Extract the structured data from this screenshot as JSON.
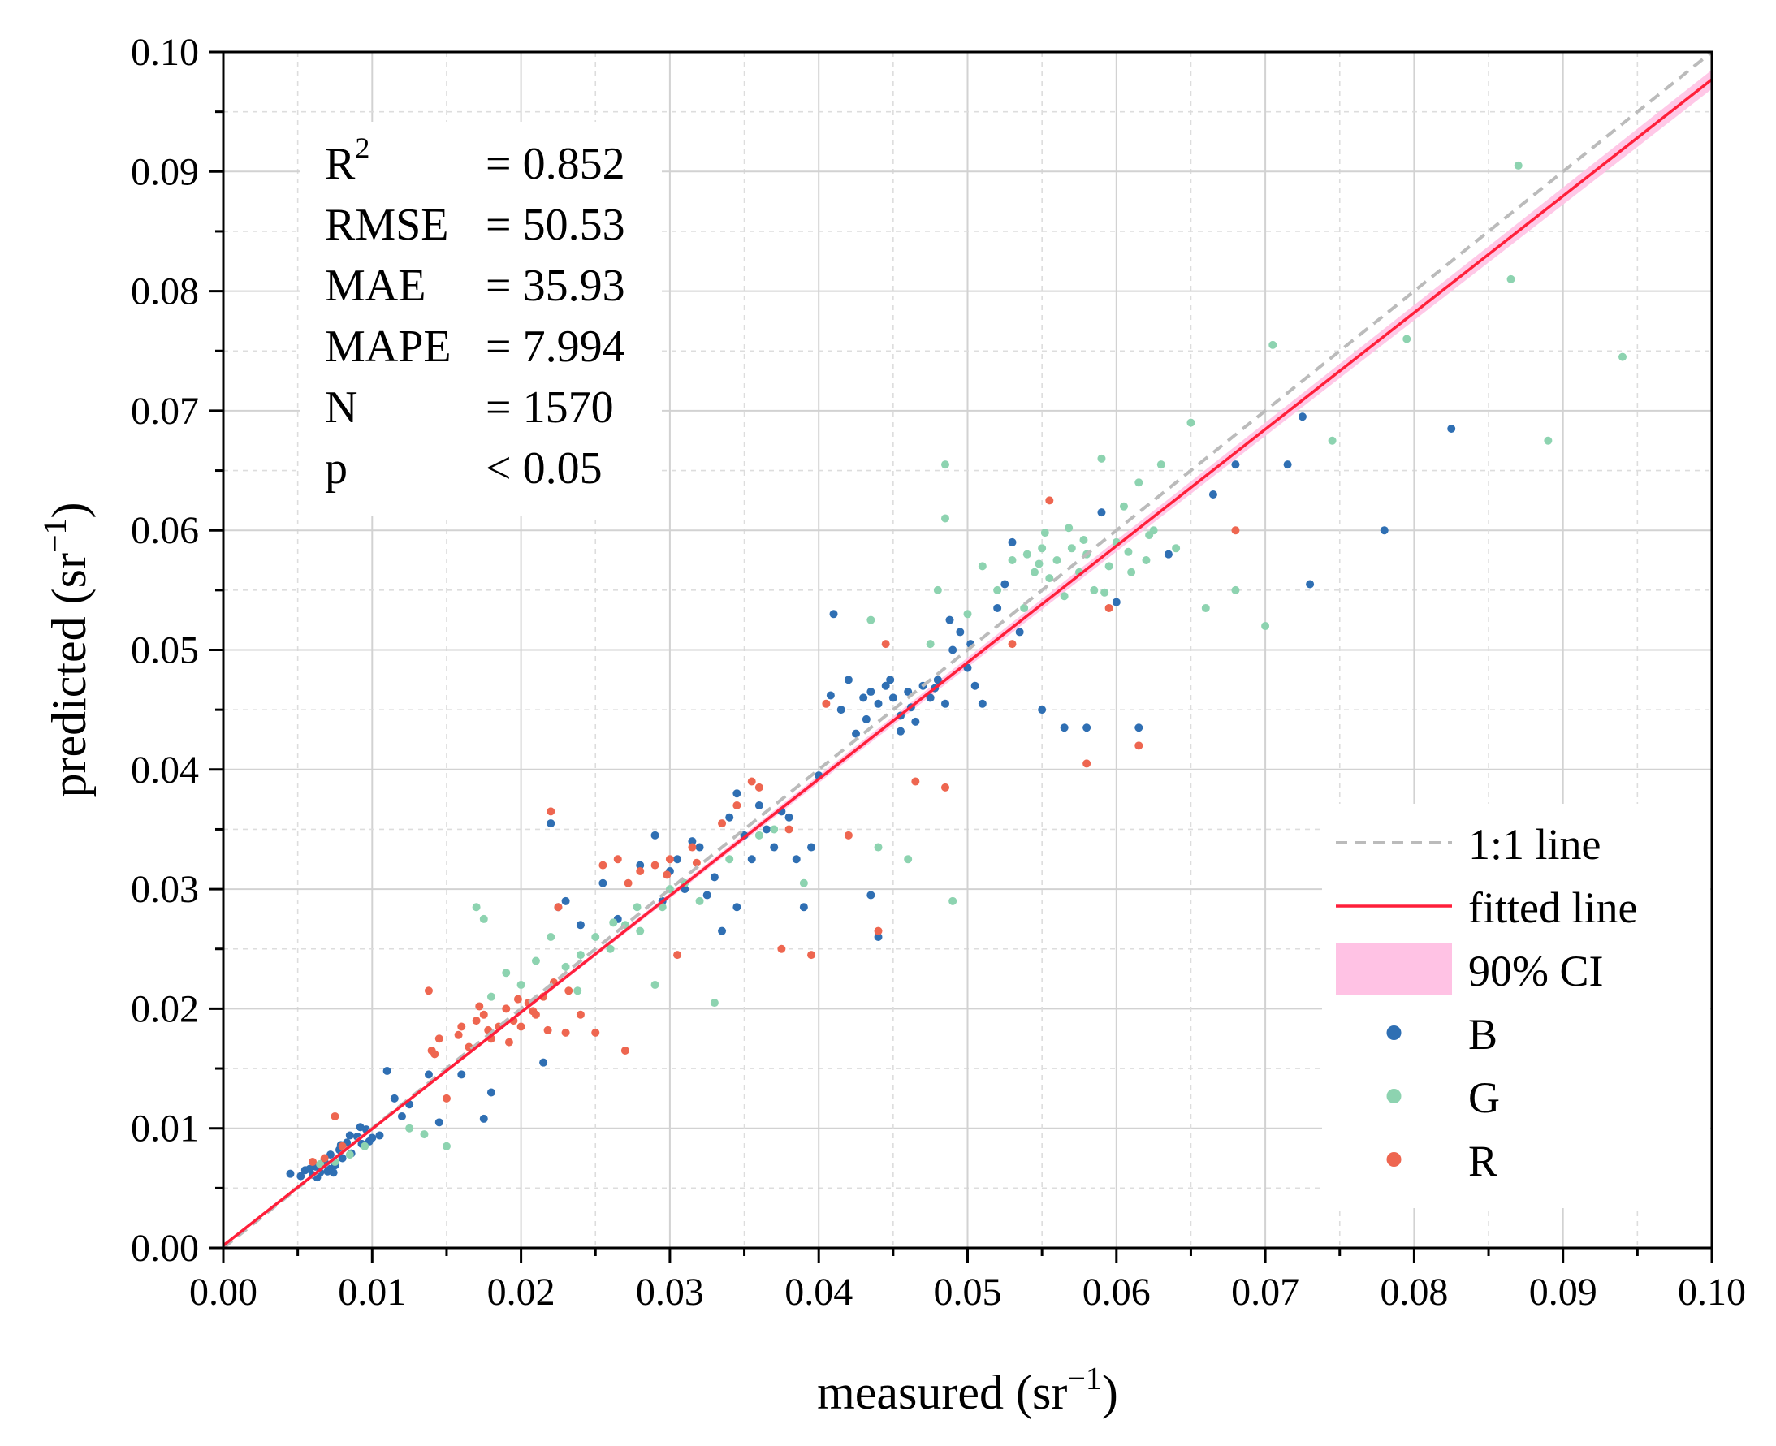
{
  "chart_data": {
    "type": "scatter",
    "xlabel": "measured (sr",
    "xlabel_sup": "−1",
    "xlabel_end": ")",
    "ylabel": "predicted (sr",
    "ylabel_sup": "−1",
    "ylabel_end": ")",
    "xlim": [
      0,
      0.1
    ],
    "ylim": [
      0,
      0.1
    ],
    "xticks": [
      "0.00",
      "0.01",
      "0.02",
      "0.03",
      "0.04",
      "0.05",
      "0.06",
      "0.07",
      "0.08",
      "0.09",
      "0.10"
    ],
    "yticks": [
      "0.00",
      "0.01",
      "0.02",
      "0.03",
      "0.04",
      "0.05",
      "0.06",
      "0.07",
      "0.08",
      "0.09",
      "0.10"
    ],
    "grid": true,
    "stats": [
      {
        "label": "R",
        "sup": "2",
        "value": "= 0.852"
      },
      {
        "label": "RMSE",
        "sup": "",
        "value": "= 50.53"
      },
      {
        "label": "MAE",
        "sup": "",
        "value": "= 35.93"
      },
      {
        "label": "MAPE",
        "sup": "",
        "value": "= 7.994"
      },
      {
        "label": "N",
        "sup": "",
        "value": "= 1570"
      },
      {
        "label": "p",
        "sup": "",
        "value": "< 0.05"
      }
    ],
    "one_to_one": {
      "name": "1:1 line",
      "color": "#bbbbbb",
      "points": [
        [
          0,
          0
        ],
        [
          0.1,
          0.1
        ]
      ]
    },
    "fit": {
      "name": "fitted line",
      "color": "#ff1f3a",
      "slope": 0.975,
      "intercept": 0.0002
    },
    "ci": {
      "name": "90% CI",
      "color": "#ffc2e4",
      "halfwidth_at_max": 0.0008
    },
    "series": [
      {
        "name": "B",
        "color": "#2f6fb3",
        "points": [
          [
            0.0045,
            0.0062
          ],
          [
            0.0052,
            0.006
          ],
          [
            0.0055,
            0.0065
          ],
          [
            0.006,
            0.0061
          ],
          [
            0.0062,
            0.0068
          ],
          [
            0.0065,
            0.0063
          ],
          [
            0.0068,
            0.0072
          ],
          [
            0.007,
            0.0064
          ],
          [
            0.0072,
            0.0078
          ],
          [
            0.0075,
            0.0069
          ],
          [
            0.0078,
            0.0082
          ],
          [
            0.008,
            0.0075
          ],
          [
            0.0083,
            0.0088
          ],
          [
            0.0086,
            0.0079
          ],
          [
            0.009,
            0.0093
          ],
          [
            0.0093,
            0.0087
          ],
          [
            0.0096,
            0.0099
          ],
          [
            0.01,
            0.0092
          ],
          [
            0.0058,
            0.0066
          ],
          [
            0.0063,
            0.0059
          ],
          [
            0.0067,
            0.0071
          ],
          [
            0.0071,
            0.0066
          ],
          [
            0.0074,
            0.0063
          ],
          [
            0.0079,
            0.0086
          ],
          [
            0.0085,
            0.0094
          ],
          [
            0.0092,
            0.0101
          ],
          [
            0.0098,
            0.0089
          ],
          [
            0.0105,
            0.0094
          ],
          [
            0.011,
            0.0148
          ],
          [
            0.0115,
            0.0125
          ],
          [
            0.012,
            0.011
          ],
          [
            0.0125,
            0.012
          ],
          [
            0.0138,
            0.0145
          ],
          [
            0.0145,
            0.0105
          ],
          [
            0.016,
            0.0145
          ],
          [
            0.0175,
            0.0108
          ],
          [
            0.018,
            0.013
          ],
          [
            0.0215,
            0.0155
          ],
          [
            0.022,
            0.0355
          ],
          [
            0.0225,
            0.0285
          ],
          [
            0.023,
            0.029
          ],
          [
            0.024,
            0.027
          ],
          [
            0.0255,
            0.0305
          ],
          [
            0.0265,
            0.0275
          ],
          [
            0.028,
            0.032
          ],
          [
            0.029,
            0.0345
          ],
          [
            0.0295,
            0.029
          ],
          [
            0.03,
            0.0315
          ],
          [
            0.0305,
            0.0325
          ],
          [
            0.031,
            0.03
          ],
          [
            0.0315,
            0.034
          ],
          [
            0.032,
            0.0335
          ],
          [
            0.0325,
            0.0295
          ],
          [
            0.033,
            0.031
          ],
          [
            0.034,
            0.036
          ],
          [
            0.0345,
            0.038
          ],
          [
            0.035,
            0.0345
          ],
          [
            0.0355,
            0.0325
          ],
          [
            0.036,
            0.037
          ],
          [
            0.0365,
            0.035
          ],
          [
            0.037,
            0.0335
          ],
          [
            0.0375,
            0.0365
          ],
          [
            0.038,
            0.036
          ],
          [
            0.0385,
            0.0325
          ],
          [
            0.039,
            0.0285
          ],
          [
            0.0395,
            0.0335
          ],
          [
            0.04,
            0.0395
          ],
          [
            0.041,
            0.053
          ],
          [
            0.0415,
            0.045
          ],
          [
            0.042,
            0.0475
          ],
          [
            0.0425,
            0.043
          ],
          [
            0.043,
            0.046
          ],
          [
            0.0435,
            0.0465
          ],
          [
            0.044,
            0.0455
          ],
          [
            0.0445,
            0.047
          ],
          [
            0.045,
            0.046
          ],
          [
            0.0455,
            0.0445
          ],
          [
            0.046,
            0.0465
          ],
          [
            0.0465,
            0.044
          ],
          [
            0.047,
            0.047
          ],
          [
            0.0475,
            0.046
          ],
          [
            0.048,
            0.0475
          ],
          [
            0.0485,
            0.0455
          ],
          [
            0.049,
            0.05
          ],
          [
            0.0495,
            0.0515
          ],
          [
            0.05,
            0.0485
          ],
          [
            0.0505,
            0.047
          ],
          [
            0.051,
            0.0455
          ],
          [
            0.052,
            0.0535
          ],
          [
            0.0525,
            0.0555
          ],
          [
            0.053,
            0.059
          ],
          [
            0.0535,
            0.0515
          ],
          [
            0.055,
            0.045
          ],
          [
            0.0565,
            0.0435
          ],
          [
            0.058,
            0.0435
          ],
          [
            0.059,
            0.0615
          ],
          [
            0.06,
            0.054
          ],
          [
            0.0615,
            0.0435
          ],
          [
            0.0635,
            0.058
          ],
          [
            0.0665,
            0.063
          ],
          [
            0.068,
            0.0655
          ],
          [
            0.0715,
            0.0655
          ],
          [
            0.0725,
            0.0695
          ],
          [
            0.073,
            0.0555
          ],
          [
            0.078,
            0.06
          ],
          [
            0.0825,
            0.0685
          ],
          [
            0.0435,
            0.0295
          ],
          [
            0.044,
            0.026
          ],
          [
            0.0345,
            0.0285
          ],
          [
            0.0335,
            0.0265
          ],
          [
            0.0408,
            0.0462
          ],
          [
            0.0448,
            0.0475
          ],
          [
            0.0462,
            0.0452
          ],
          [
            0.0478,
            0.0468
          ],
          [
            0.0432,
            0.0442
          ],
          [
            0.0455,
            0.0432
          ],
          [
            0.0502,
            0.0505
          ],
          [
            0.0488,
            0.0525
          ]
        ]
      },
      {
        "name": "G",
        "color": "#8dd3b0",
        "points": [
          [
            0.0065,
            0.007
          ],
          [
            0.0075,
            0.0072
          ],
          [
            0.0085,
            0.0078
          ],
          [
            0.0095,
            0.0085
          ],
          [
            0.0125,
            0.01
          ],
          [
            0.0135,
            0.0095
          ],
          [
            0.015,
            0.0085
          ],
          [
            0.017,
            0.0285
          ],
          [
            0.0175,
            0.0275
          ],
          [
            0.018,
            0.021
          ],
          [
            0.019,
            0.023
          ],
          [
            0.02,
            0.022
          ],
          [
            0.021,
            0.024
          ],
          [
            0.022,
            0.026
          ],
          [
            0.023,
            0.0235
          ],
          [
            0.024,
            0.0245
          ],
          [
            0.025,
            0.026
          ],
          [
            0.026,
            0.025
          ],
          [
            0.027,
            0.027
          ],
          [
            0.028,
            0.0265
          ],
          [
            0.029,
            0.022
          ],
          [
            0.0295,
            0.0285
          ],
          [
            0.03,
            0.03
          ],
          [
            0.031,
            0.0305
          ],
          [
            0.032,
            0.029
          ],
          [
            0.033,
            0.0205
          ],
          [
            0.034,
            0.0325
          ],
          [
            0.036,
            0.0345
          ],
          [
            0.037,
            0.035
          ],
          [
            0.039,
            0.0305
          ],
          [
            0.044,
            0.0335
          ],
          [
            0.0435,
            0.0525
          ],
          [
            0.046,
            0.0325
          ],
          [
            0.0475,
            0.0505
          ],
          [
            0.048,
            0.055
          ],
          [
            0.0485,
            0.061
          ],
          [
            0.0485,
            0.0655
          ],
          [
            0.049,
            0.029
          ],
          [
            0.05,
            0.053
          ],
          [
            0.051,
            0.057
          ],
          [
            0.052,
            0.055
          ],
          [
            0.053,
            0.0575
          ],
          [
            0.054,
            0.058
          ],
          [
            0.0545,
            0.0565
          ],
          [
            0.055,
            0.0585
          ],
          [
            0.0555,
            0.056
          ],
          [
            0.056,
            0.0575
          ],
          [
            0.0565,
            0.0545
          ],
          [
            0.057,
            0.0585
          ],
          [
            0.0575,
            0.0565
          ],
          [
            0.058,
            0.058
          ],
          [
            0.0585,
            0.055
          ],
          [
            0.059,
            0.066
          ],
          [
            0.0595,
            0.057
          ],
          [
            0.06,
            0.059
          ],
          [
            0.0605,
            0.062
          ],
          [
            0.061,
            0.0565
          ],
          [
            0.0615,
            0.064
          ],
          [
            0.062,
            0.0575
          ],
          [
            0.0625,
            0.06
          ],
          [
            0.063,
            0.0655
          ],
          [
            0.064,
            0.0585
          ],
          [
            0.065,
            0.069
          ],
          [
            0.066,
            0.0535
          ],
          [
            0.068,
            0.055
          ],
          [
            0.07,
            0.052
          ],
          [
            0.0705,
            0.0755
          ],
          [
            0.0745,
            0.0675
          ],
          [
            0.0795,
            0.076
          ],
          [
            0.0865,
            0.081
          ],
          [
            0.087,
            0.0905
          ],
          [
            0.089,
            0.0675
          ],
          [
            0.094,
            0.0745
          ],
          [
            0.0538,
            0.0535
          ],
          [
            0.0552,
            0.0598
          ],
          [
            0.0568,
            0.0602
          ],
          [
            0.0592,
            0.0548
          ],
          [
            0.0608,
            0.0582
          ],
          [
            0.0622,
            0.0596
          ],
          [
            0.0578,
            0.0592
          ],
          [
            0.0548,
            0.0572
          ],
          [
            0.0238,
            0.0215
          ],
          [
            0.0262,
            0.0272
          ],
          [
            0.0278,
            0.0285
          ]
        ]
      },
      {
        "name": "R",
        "color": "#ee6650",
        "points": [
          [
            0.006,
            0.0072
          ],
          [
            0.0068,
            0.0075
          ],
          [
            0.0075,
            0.011
          ],
          [
            0.008,
            0.0085
          ],
          [
            0.0138,
            0.0215
          ],
          [
            0.014,
            0.0165
          ],
          [
            0.0145,
            0.0175
          ],
          [
            0.015,
            0.0125
          ],
          [
            0.016,
            0.0185
          ],
          [
            0.017,
            0.019
          ],
          [
            0.0175,
            0.0195
          ],
          [
            0.018,
            0.0175
          ],
          [
            0.0185,
            0.0185
          ],
          [
            0.019,
            0.02
          ],
          [
            0.0195,
            0.019
          ],
          [
            0.02,
            0.0185
          ],
          [
            0.0205,
            0.0205
          ],
          [
            0.021,
            0.0195
          ],
          [
            0.0215,
            0.021
          ],
          [
            0.022,
            0.0365
          ],
          [
            0.0225,
            0.0285
          ],
          [
            0.023,
            0.018
          ],
          [
            0.024,
            0.0195
          ],
          [
            0.025,
            0.018
          ],
          [
            0.0255,
            0.032
          ],
          [
            0.0265,
            0.0325
          ],
          [
            0.027,
            0.0165
          ],
          [
            0.028,
            0.0315
          ],
          [
            0.029,
            0.032
          ],
          [
            0.03,
            0.0325
          ],
          [
            0.0305,
            0.0245
          ],
          [
            0.0315,
            0.0335
          ],
          [
            0.0335,
            0.0355
          ],
          [
            0.0345,
            0.037
          ],
          [
            0.0355,
            0.039
          ],
          [
            0.036,
            0.0385
          ],
          [
            0.0375,
            0.025
          ],
          [
            0.038,
            0.035
          ],
          [
            0.0395,
            0.0245
          ],
          [
            0.0405,
            0.0455
          ],
          [
            0.042,
            0.0345
          ],
          [
            0.044,
            0.0265
          ],
          [
            0.0445,
            0.0505
          ],
          [
            0.0465,
            0.039
          ],
          [
            0.0485,
            0.0385
          ],
          [
            0.053,
            0.0505
          ],
          [
            0.0555,
            0.0625
          ],
          [
            0.058,
            0.0405
          ],
          [
            0.0595,
            0.0535
          ],
          [
            0.0615,
            0.042
          ],
          [
            0.068,
            0.06
          ],
          [
            0.0165,
            0.0168
          ],
          [
            0.0178,
            0.0182
          ],
          [
            0.0192,
            0.0172
          ],
          [
            0.0208,
            0.0198
          ],
          [
            0.0222,
            0.0222
          ],
          [
            0.0232,
            0.0215
          ],
          [
            0.0172,
            0.0202
          ],
          [
            0.0158,
            0.0178
          ],
          [
            0.0198,
            0.0208
          ],
          [
            0.0142,
            0.0162
          ],
          [
            0.0218,
            0.0182
          ],
          [
            0.0272,
            0.0305
          ],
          [
            0.0298,
            0.0312
          ],
          [
            0.0318,
            0.0322
          ]
        ]
      }
    ],
    "legend": {
      "position": "bottom-right",
      "entries": [
        {
          "name": "1:1 line",
          "kind": "dash"
        },
        {
          "name": "fitted line",
          "kind": "line"
        },
        {
          "name": "90% CI",
          "kind": "band"
        },
        {
          "name": "B",
          "kind": "dot"
        },
        {
          "name": "G",
          "kind": "dot"
        },
        {
          "name": "R",
          "kind": "dot"
        }
      ]
    }
  }
}
